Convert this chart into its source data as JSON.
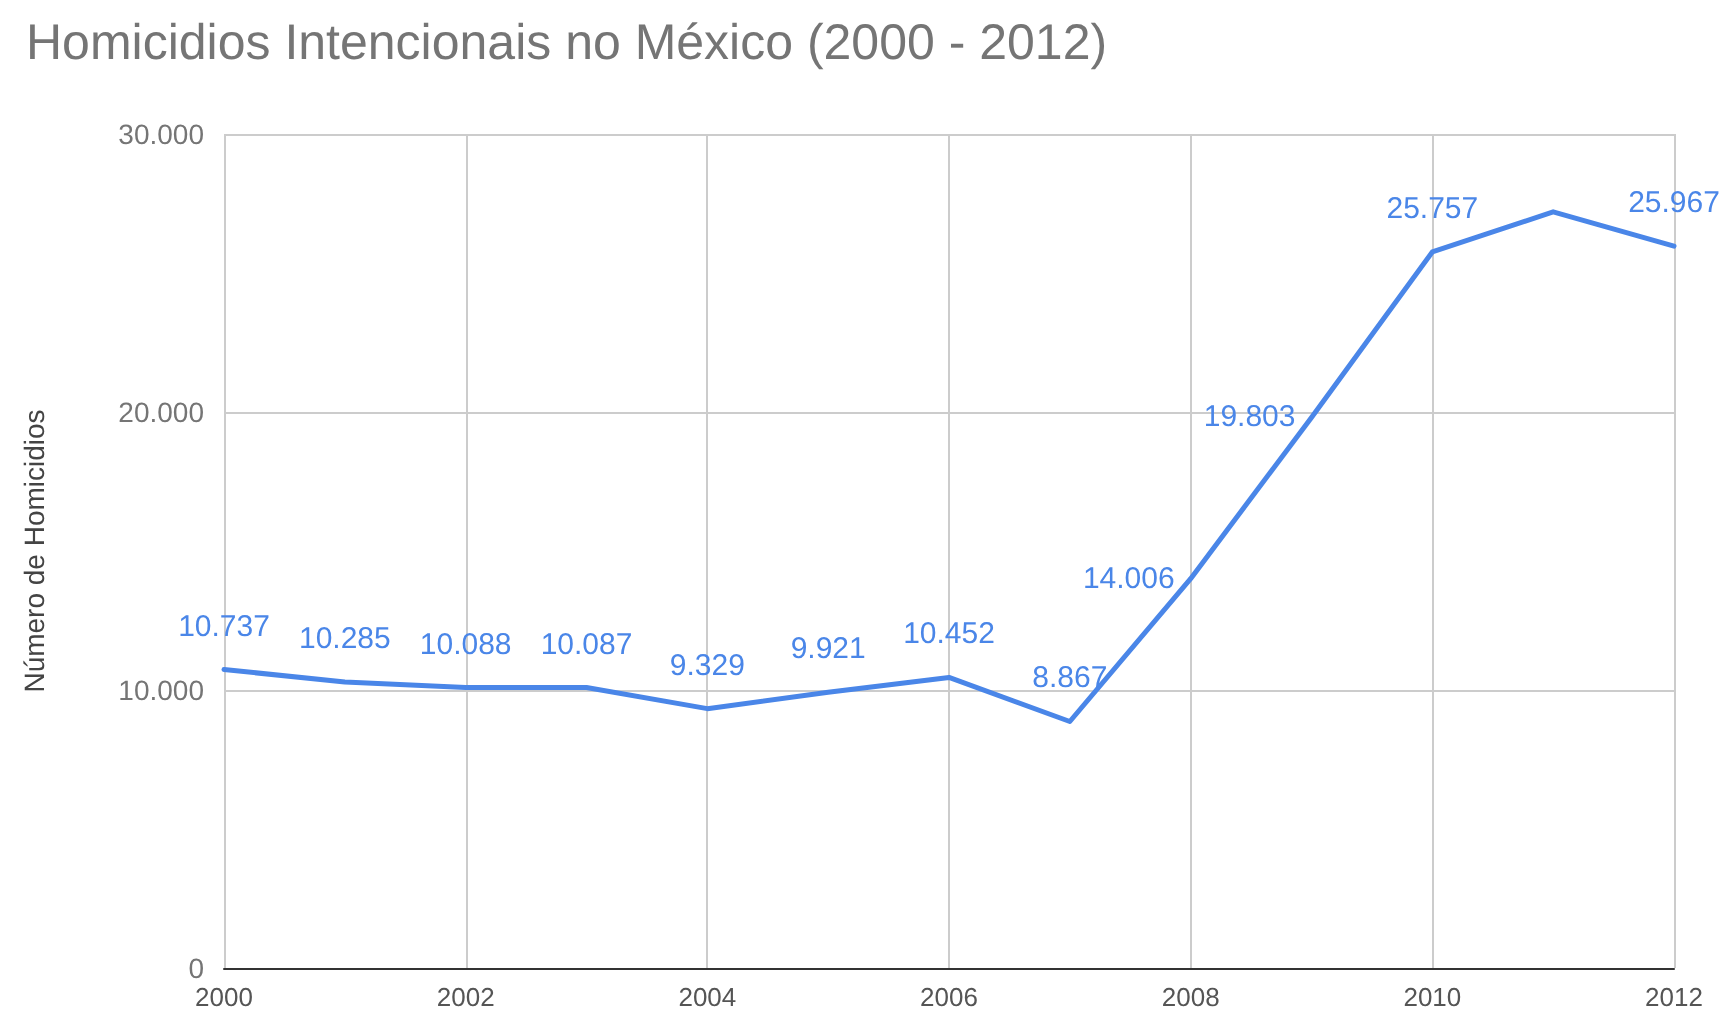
{
  "chart_data": {
    "type": "line",
    "title": "Homicidios Intencionais no México (2000 - 2012)",
    "ylabel": "Número de Homicidios",
    "x": [
      2000,
      2001,
      2002,
      2003,
      2004,
      2005,
      2006,
      2007,
      2008,
      2009,
      2010,
      2011,
      2012
    ],
    "series": [
      {
        "color": "#4a86e8",
        "values": [
          10737,
          10285,
          10088,
          10087,
          9329,
          9921,
          10452,
          8867,
          14006,
          19803,
          25757,
          27200,
          25967
        ],
        "value_labels": [
          "10.737",
          "10.285",
          "10.088",
          "10.087",
          "9.329",
          "9.921",
          "10.452",
          "8.867",
          "14.006",
          "19.803",
          "25.757",
          null,
          "25.967"
        ]
      }
    ],
    "xlim": [
      2000,
      2012
    ],
    "xticks": [
      2000,
      2002,
      2004,
      2006,
      2008,
      2010,
      2012
    ],
    "ylim": [
      0,
      30000
    ],
    "yticks": [
      0,
      {
        "value": 10000,
        "label": "10.000"
      },
      {
        "value": 20000,
        "label": "20.000"
      },
      {
        "value": 30000,
        "label": "30.000"
      }
    ],
    "grid": true,
    "marker": "none",
    "line_style": "solid"
  }
}
